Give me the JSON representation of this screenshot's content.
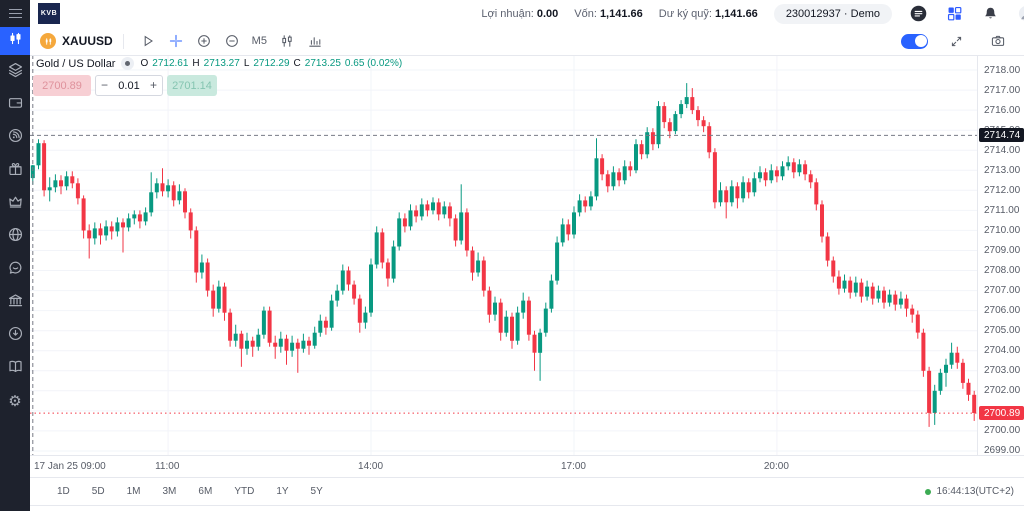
{
  "topbar": {
    "logo": "KVB",
    "profit_label": "Lợi nhuận:",
    "profit_value": "0.00",
    "equity_label": "Vốn:",
    "equity_value": "1,141.66",
    "margin_label": "Dư ký quỹ:",
    "margin_value": "1,141.66",
    "account_pill": "230012937 · Demo"
  },
  "icons": {
    "topbar": [
      "menu-icon",
      "menu-circle-icon",
      "apps-grid-icon",
      "bell-icon",
      "profile-icon"
    ],
    "sidebar": [
      "candlestick-icon",
      "layers-icon",
      "wallet-icon",
      "signal-icon",
      "gift-icon",
      "crown-icon",
      "globe-icon",
      "chat-icon",
      "bank-icon",
      "download-icon",
      "book-icon",
      "gear-icon"
    ],
    "toolbar": [
      "coin-icon",
      "pointer-icon",
      "crosshair-icon",
      "zoom-in-icon",
      "zoom-out-icon",
      "candles-icon",
      "indicators-icon",
      "fullscreen-icon",
      "camera-icon"
    ]
  },
  "toolbar": {
    "symbol": "XAUUSD",
    "timeframe": "M5"
  },
  "legend": {
    "instrument": "Gold / US Dollar",
    "o_label": "O",
    "o": "2712.61",
    "h_label": "H",
    "h": "2713.27",
    "l_label": "L",
    "l": "2712.29",
    "c_label": "C",
    "c": "2713.25",
    "change": "0.65 (0.02%)"
  },
  "trade_panel": {
    "sell": "2700.89",
    "minus": "−",
    "volume": "0.01",
    "plus": "+",
    "buy": "2701.14"
  },
  "bottom": {
    "ranges": [
      "1D",
      "5D",
      "1M",
      "3M",
      "6M",
      "YTD",
      "1Y",
      "5Y"
    ],
    "clock": "16:44:13(UTC+2)"
  },
  "colors": {
    "accent": "#2962ff",
    "up": "#089981",
    "down": "#f23645"
  },
  "chart_data": {
    "type": "candlestick",
    "symbol": "XAUUSD",
    "timeframe": "M5",
    "title": "Gold / US Dollar",
    "grid": true,
    "scale": {
      "price_at_top": 2718.75,
      "price_at_bottom": 2698.8
    },
    "y_axis_labels": [
      "2718.00",
      "2717.00",
      "2716.00",
      "2715.00",
      "2714.00",
      "2713.00",
      "2712.00",
      "2711.00",
      "2710.00",
      "2709.00",
      "2708.00",
      "2707.00",
      "2706.00",
      "2705.00",
      "2704.00",
      "2703.00",
      "2702.00",
      "2701.00",
      "2700.00",
      "2699.00"
    ],
    "x_start_label": "17 Jan 25 09:00",
    "x_ticks": [
      {
        "i": 24,
        "label": "11:00"
      },
      {
        "i": 60,
        "label": "14:00"
      },
      {
        "i": 96,
        "label": "17:00"
      },
      {
        "i": 132,
        "label": "20:00"
      }
    ],
    "crosshair": {
      "i": 0,
      "price": 2714.74,
      "label": "2714.74"
    },
    "price_line": {
      "price": 2700.89,
      "label": "2700.89"
    },
    "colors": {
      "up": "#089981",
      "down": "#f23645",
      "grid": "#f2f4f9",
      "crosshair": "#787b86"
    },
    "candles": [
      [
        2712.61,
        2713.27,
        2712.29,
        2713.25
      ],
      [
        2713.25,
        2714.55,
        2713.05,
        2714.35
      ],
      [
        2714.35,
        2714.5,
        2711.7,
        2712.0
      ],
      [
        2712.0,
        2712.65,
        2711.45,
        2712.15
      ],
      [
        2712.15,
        2712.8,
        2711.9,
        2712.5
      ],
      [
        2712.5,
        2712.75,
        2711.8,
        2712.2
      ],
      [
        2712.2,
        2712.95,
        2712.0,
        2712.7
      ],
      [
        2712.7,
        2712.95,
        2712.1,
        2712.35
      ],
      [
        2712.35,
        2712.6,
        2711.3,
        2711.6
      ],
      [
        2711.6,
        2711.75,
        2709.6,
        2710.0
      ],
      [
        2710.0,
        2710.3,
        2708.6,
        2709.6
      ],
      [
        2709.6,
        2710.4,
        2709.3,
        2710.1
      ],
      [
        2710.1,
        2710.35,
        2709.3,
        2709.75
      ],
      [
        2709.75,
        2710.5,
        2709.5,
        2710.2
      ],
      [
        2710.2,
        2710.45,
        2709.55,
        2709.95
      ],
      [
        2709.95,
        2710.65,
        2709.7,
        2710.4
      ],
      [
        2710.4,
        2710.6,
        2708.9,
        2710.15
      ],
      [
        2710.15,
        2710.85,
        2709.95,
        2710.6
      ],
      [
        2710.6,
        2711.0,
        2710.3,
        2710.8
      ],
      [
        2710.8,
        2711.0,
        2710.1,
        2710.45
      ],
      [
        2710.45,
        2711.15,
        2710.25,
        2710.9
      ],
      [
        2710.9,
        2712.9,
        2710.7,
        2711.9
      ],
      [
        2711.9,
        2712.6,
        2711.6,
        2712.35
      ],
      [
        2712.35,
        2713.1,
        2711.7,
        2711.95
      ],
      [
        2711.95,
        2712.55,
        2711.65,
        2712.25
      ],
      [
        2712.25,
        2712.45,
        2711.2,
        2711.5
      ],
      [
        2711.5,
        2712.3,
        2711.3,
        2711.95
      ],
      [
        2711.95,
        2712.1,
        2710.6,
        2710.9
      ],
      [
        2710.9,
        2711.1,
        2709.6,
        2710.0
      ],
      [
        2710.0,
        2710.2,
        2707.4,
        2707.9
      ],
      [
        2707.9,
        2708.8,
        2707.6,
        2708.4
      ],
      [
        2708.4,
        2708.6,
        2706.7,
        2707.0
      ],
      [
        2707.0,
        2707.3,
        2705.7,
        2706.1
      ],
      [
        2706.1,
        2707.5,
        2705.9,
        2707.2
      ],
      [
        2707.2,
        2707.4,
        2705.5,
        2705.9
      ],
      [
        2705.9,
        2706.1,
        2704.2,
        2704.5
      ],
      [
        2704.5,
        2705.3,
        2704.2,
        2704.85
      ],
      [
        2704.85,
        2705.0,
        2703.2,
        2704.1
      ],
      [
        2704.1,
        2704.9,
        2703.8,
        2704.5
      ],
      [
        2704.5,
        2704.7,
        2703.7,
        2704.2
      ],
      [
        2704.2,
        2705.1,
        2704.0,
        2704.8
      ],
      [
        2704.8,
        2706.2,
        2704.6,
        2706.0
      ],
      [
        2706.0,
        2706.2,
        2704.2,
        2704.4
      ],
      [
        2704.4,
        2704.75,
        2703.6,
        2704.2
      ],
      [
        2704.2,
        2704.95,
        2703.9,
        2704.6
      ],
      [
        2704.6,
        2704.8,
        2703.3,
        2704.0
      ],
      [
        2704.0,
        2704.75,
        2703.7,
        2704.4
      ],
      [
        2704.4,
        2704.6,
        2702.9,
        2704.1
      ],
      [
        2704.1,
        2704.85,
        2703.9,
        2704.5
      ],
      [
        2704.5,
        2704.7,
        2703.8,
        2704.25
      ],
      [
        2704.25,
        2705.2,
        2704.1,
        2704.9
      ],
      [
        2704.9,
        2705.8,
        2704.7,
        2705.5
      ],
      [
        2705.5,
        2705.7,
        2704.8,
        2705.15
      ],
      [
        2705.15,
        2706.8,
        2705.0,
        2706.5
      ],
      [
        2706.5,
        2707.3,
        2706.2,
        2707.0
      ],
      [
        2707.0,
        2708.3,
        2706.8,
        2708.0
      ],
      [
        2708.0,
        2708.2,
        2707.0,
        2707.3
      ],
      [
        2707.3,
        2707.5,
        2706.3,
        2706.6
      ],
      [
        2706.6,
        2706.8,
        2704.9,
        2705.4
      ],
      [
        2705.4,
        2706.2,
        2705.1,
        2705.9
      ],
      [
        2705.9,
        2708.6,
        2705.7,
        2708.3
      ],
      [
        2708.3,
        2710.2,
        2708.1,
        2709.9
      ],
      [
        2709.9,
        2710.1,
        2708.1,
        2708.4
      ],
      [
        2708.4,
        2708.6,
        2707.2,
        2707.6
      ],
      [
        2707.6,
        2709.5,
        2707.4,
        2709.2
      ],
      [
        2709.2,
        2710.9,
        2709.0,
        2710.6
      ],
      [
        2710.6,
        2710.85,
        2709.9,
        2710.2
      ],
      [
        2710.2,
        2711.3,
        2710.0,
        2711.0
      ],
      [
        2711.0,
        2711.25,
        2710.4,
        2710.7
      ],
      [
        2710.7,
        2711.6,
        2710.5,
        2711.3
      ],
      [
        2711.3,
        2711.5,
        2710.7,
        2711.0
      ],
      [
        2711.0,
        2711.65,
        2710.8,
        2711.4
      ],
      [
        2711.4,
        2711.6,
        2710.5,
        2710.8
      ],
      [
        2710.8,
        2711.45,
        2710.6,
        2711.2
      ],
      [
        2711.2,
        2711.4,
        2710.2,
        2710.6
      ],
      [
        2710.6,
        2710.8,
        2709.2,
        2709.5
      ],
      [
        2709.5,
        2712.3,
        2709.3,
        2710.9
      ],
      [
        2710.9,
        2711.1,
        2708.7,
        2709.0
      ],
      [
        2709.0,
        2709.2,
        2707.5,
        2707.9
      ],
      [
        2707.9,
        2708.9,
        2707.7,
        2708.5
      ],
      [
        2708.5,
        2708.7,
        2706.7,
        2707.0
      ],
      [
        2707.0,
        2707.2,
        2705.4,
        2705.8
      ],
      [
        2705.8,
        2706.7,
        2705.5,
        2706.4
      ],
      [
        2706.4,
        2706.6,
        2704.5,
        2704.9
      ],
      [
        2704.9,
        2706.0,
        2704.7,
        2705.7
      ],
      [
        2705.7,
        2705.9,
        2704.1,
        2704.5
      ],
      [
        2704.5,
        2706.2,
        2704.3,
        2705.9
      ],
      [
        2705.9,
        2706.9,
        2705.6,
        2706.5
      ],
      [
        2706.5,
        2706.7,
        2704.5,
        2704.8
      ],
      [
        2704.8,
        2705.0,
        2703.0,
        2703.9
      ],
      [
        2703.9,
        2705.1,
        2702.5,
        2704.9
      ],
      [
        2704.9,
        2706.4,
        2704.7,
        2706.1
      ],
      [
        2706.1,
        2707.8,
        2705.9,
        2707.5
      ],
      [
        2707.5,
        2709.7,
        2707.3,
        2709.4
      ],
      [
        2709.4,
        2710.6,
        2709.2,
        2710.3
      ],
      [
        2710.3,
        2710.55,
        2709.5,
        2709.8
      ],
      [
        2709.8,
        2711.2,
        2709.6,
        2710.9
      ],
      [
        2710.9,
        2711.8,
        2710.7,
        2711.5
      ],
      [
        2711.5,
        2711.7,
        2710.9,
        2711.2
      ],
      [
        2711.2,
        2711.95,
        2711.0,
        2711.7
      ],
      [
        2711.7,
        2714.6,
        2711.5,
        2713.6
      ],
      [
        2713.6,
        2713.8,
        2712.5,
        2712.8
      ],
      [
        2712.8,
        2713.0,
        2711.9,
        2712.2
      ],
      [
        2712.2,
        2713.2,
        2712.0,
        2712.9
      ],
      [
        2712.9,
        2713.1,
        2712.2,
        2712.5
      ],
      [
        2712.5,
        2713.5,
        2712.3,
        2713.2
      ],
      [
        2713.2,
        2713.45,
        2712.7,
        2713.0
      ],
      [
        2713.0,
        2714.55,
        2712.85,
        2714.3
      ],
      [
        2714.3,
        2714.5,
        2713.55,
        2713.8
      ],
      [
        2713.8,
        2715.15,
        2713.6,
        2714.9
      ],
      [
        2714.9,
        2715.1,
        2714.0,
        2714.3
      ],
      [
        2714.3,
        2716.45,
        2714.1,
        2716.2
      ],
      [
        2716.2,
        2716.4,
        2715.1,
        2715.4
      ],
      [
        2715.4,
        2715.6,
        2714.6,
        2714.95
      ],
      [
        2714.95,
        2715.95,
        2714.8,
        2715.8
      ],
      [
        2715.8,
        2716.5,
        2715.6,
        2716.3
      ],
      [
        2716.3,
        2717.35,
        2716.1,
        2716.65
      ],
      [
        2716.65,
        2717.1,
        2715.8,
        2716.0
      ],
      [
        2716.0,
        2716.2,
        2715.2,
        2715.5
      ],
      [
        2715.5,
        2715.7,
        2714.9,
        2715.2
      ],
      [
        2715.2,
        2715.4,
        2713.6,
        2713.9
      ],
      [
        2713.9,
        2714.1,
        2711.1,
        2711.4
      ],
      [
        2711.4,
        2712.4,
        2711.2,
        2712.0
      ],
      [
        2712.0,
        2712.2,
        2710.6,
        2711.4
      ],
      [
        2711.4,
        2712.5,
        2711.2,
        2712.2
      ],
      [
        2712.2,
        2712.4,
        2711.1,
        2711.6
      ],
      [
        2711.6,
        2712.7,
        2711.4,
        2712.4
      ],
      [
        2712.4,
        2712.6,
        2711.6,
        2711.9
      ],
      [
        2711.9,
        2712.9,
        2711.7,
        2712.6
      ],
      [
        2712.6,
        2713.2,
        2712.4,
        2712.9
      ],
      [
        2712.9,
        2713.1,
        2712.2,
        2712.5
      ],
      [
        2712.5,
        2713.3,
        2712.35,
        2713.0
      ],
      [
        2713.0,
        2713.2,
        2712.4,
        2712.7
      ],
      [
        2712.7,
        2713.45,
        2712.5,
        2713.2
      ],
      [
        2713.2,
        2713.7,
        2713.0,
        2713.4
      ],
      [
        2713.4,
        2713.6,
        2712.6,
        2712.9
      ],
      [
        2712.9,
        2713.55,
        2712.7,
        2713.3
      ],
      [
        2713.3,
        2713.5,
        2712.5,
        2712.8
      ],
      [
        2712.8,
        2713.0,
        2712.1,
        2712.4
      ],
      [
        2712.4,
        2712.6,
        2711.0,
        2711.3
      ],
      [
        2711.3,
        2711.5,
        2709.4,
        2709.7
      ],
      [
        2709.7,
        2709.9,
        2708.2,
        2708.5
      ],
      [
        2708.5,
        2708.7,
        2707.4,
        2707.7
      ],
      [
        2707.7,
        2708.0,
        2706.8,
        2707.1
      ],
      [
        2707.1,
        2707.8,
        2706.9,
        2707.5
      ],
      [
        2707.5,
        2707.7,
        2706.6,
        2706.9
      ],
      [
        2706.9,
        2707.7,
        2706.7,
        2707.4
      ],
      [
        2707.4,
        2707.6,
        2706.4,
        2706.7
      ],
      [
        2706.7,
        2707.5,
        2706.5,
        2707.2
      ],
      [
        2707.2,
        2707.4,
        2706.3,
        2706.6
      ],
      [
        2706.6,
        2707.25,
        2706.4,
        2707.0
      ],
      [
        2707.0,
        2707.2,
        2706.1,
        2706.4
      ],
      [
        2706.4,
        2707.05,
        2706.2,
        2706.8
      ],
      [
        2706.8,
        2707.0,
        2706.0,
        2706.3
      ],
      [
        2706.3,
        2706.95,
        2706.1,
        2706.6
      ],
      [
        2706.6,
        2706.8,
        2705.7,
        2706.1
      ],
      [
        2706.1,
        2706.3,
        2705.4,
        2705.8
      ],
      [
        2705.8,
        2706.0,
        2704.6,
        2704.9
      ],
      [
        2704.9,
        2705.1,
        2702.7,
        2703.0
      ],
      [
        2703.0,
        2703.2,
        2700.2,
        2700.9
      ],
      [
        2700.9,
        2702.3,
        2700.3,
        2702.0
      ],
      [
        2702.0,
        2703.1,
        2701.8,
        2702.9
      ],
      [
        2702.9,
        2703.6,
        2702.2,
        2703.3
      ],
      [
        2703.3,
        2704.4,
        2703.1,
        2703.9
      ],
      [
        2703.9,
        2704.2,
        2703.1,
        2703.4
      ],
      [
        2703.4,
        2703.6,
        2702.1,
        2702.4
      ],
      [
        2702.4,
        2702.6,
        2701.5,
        2701.8
      ],
      [
        2701.8,
        2702.0,
        2700.5,
        2700.89
      ]
    ]
  }
}
